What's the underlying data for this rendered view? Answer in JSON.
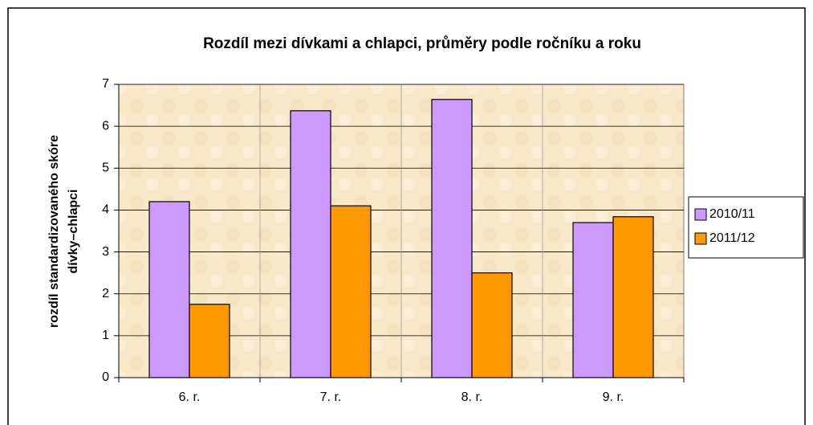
{
  "chart_data": {
    "type": "bar",
    "title": "Rozdíl mezi dívkami a chlapci, průměry podle ročníku a roku",
    "y_label": [
      "rozdíl standardizovaného skóre",
      "dívky–chlapci"
    ],
    "categories": [
      "6. r.",
      "7. r.",
      "8. r.",
      "9. r."
    ],
    "series": [
      {
        "name": "2010/11",
        "color": "#cc99ff",
        "values": [
          4.2,
          6.37,
          6.64,
          3.7
        ]
      },
      {
        "name": "2011/12",
        "color": "#ff9900",
        "values": [
          1.75,
          4.1,
          2.5,
          3.84
        ]
      }
    ],
    "ylim": [
      0,
      7
    ],
    "yticks": [
      0,
      1,
      2,
      3,
      4,
      5,
      6,
      7
    ],
    "grid": true,
    "legend": "right"
  }
}
